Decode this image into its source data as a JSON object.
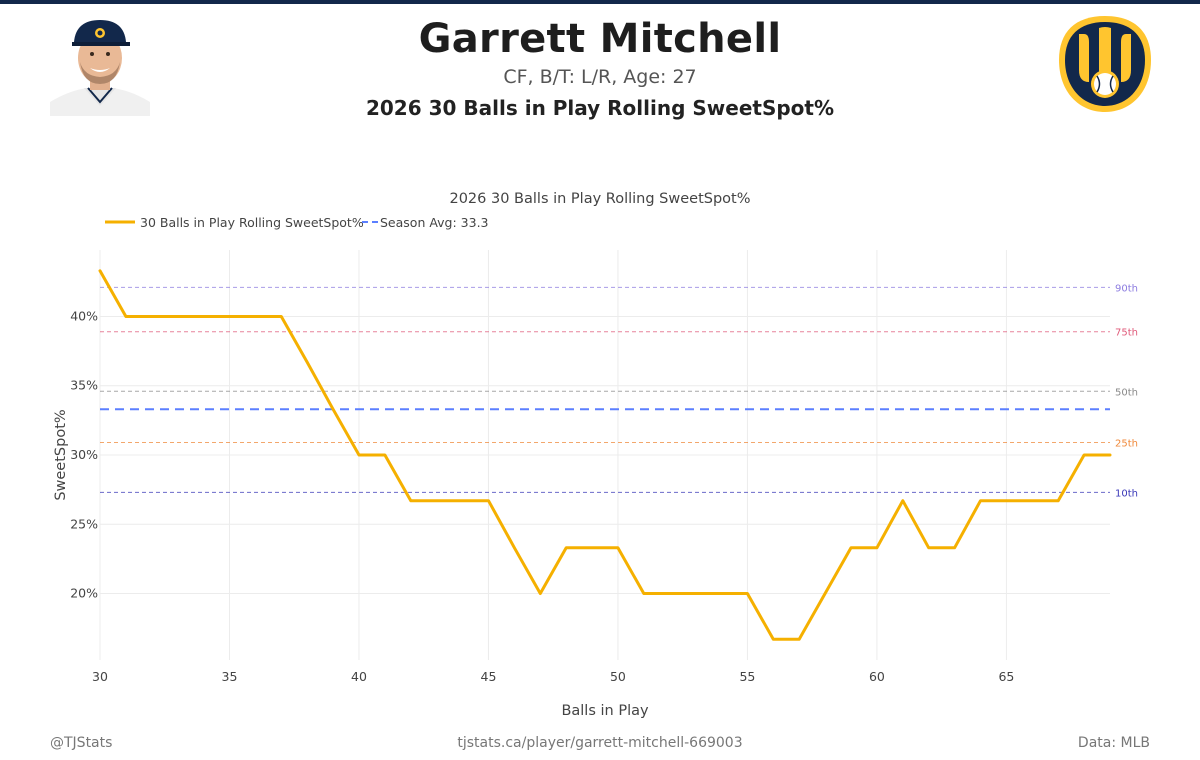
{
  "header": {
    "player_name": "Garrett Mitchell",
    "player_info": "CF, B/T: L/R, Age: 27",
    "report_title": "2026 30 Balls in Play Rolling SweetSpot%"
  },
  "footer": {
    "handle": "@TJStats",
    "url": "tjstats.ca/player/garrett-mitchell-669003",
    "source": "Data: MLB"
  },
  "colors": {
    "line": "#F5B000",
    "season_avg": "#5B7FFF",
    "p90": "#8C7CE0",
    "p75": "#E05A7A",
    "p50": "#8A8A8A",
    "p25": "#F08A3C",
    "p10": "#3A38B8",
    "team_navy": "#12284B",
    "team_gold": "#FFC52F"
  },
  "chart_data": {
    "type": "line",
    "title": "2026 30 Balls in Play Rolling SweetSpot%",
    "xlabel": "Balls in Play",
    "ylabel": "SweetSpot%",
    "xlim": [
      30,
      69
    ],
    "ylim": [
      15.2,
      44.8
    ],
    "grid": true,
    "legend_placement": "top-left",
    "x_ticks": [
      30,
      35,
      40,
      45,
      50,
      55,
      60,
      65
    ],
    "y_ticks": [
      20,
      25,
      30,
      35,
      40
    ],
    "y_tick_labels": [
      "20%",
      "25%",
      "30%",
      "35%",
      "40%"
    ],
    "series": [
      {
        "name": "30 Balls in Play Rolling SweetSpot%",
        "x": [
          30,
          31,
          32,
          33,
          34,
          35,
          36,
          37,
          38,
          39,
          40,
          41,
          42,
          43,
          44,
          45,
          46,
          47,
          48,
          49,
          50,
          51,
          52,
          53,
          54,
          55,
          56,
          57,
          58,
          59,
          60,
          61,
          62,
          63,
          64,
          65,
          66,
          67,
          68,
          69
        ],
        "y": [
          43.3,
          40.0,
          40.0,
          40.0,
          40.0,
          40.0,
          40.0,
          40.0,
          36.7,
          33.3,
          30.0,
          30.0,
          26.7,
          26.7,
          26.7,
          26.7,
          23.3,
          20.0,
          23.3,
          23.3,
          23.3,
          20.0,
          20.0,
          20.0,
          20.0,
          20.0,
          16.7,
          16.7,
          20.0,
          23.3,
          23.3,
          26.7,
          23.3,
          23.3,
          26.7,
          26.7,
          26.7,
          26.7,
          30.0,
          30.0
        ]
      }
    ],
    "season_avg": {
      "label": "Season Avg: 33.3",
      "value": 33.3
    },
    "percentiles": [
      {
        "label": "90th",
        "value": 42.1,
        "color_key": "p90"
      },
      {
        "label": "75th",
        "value": 38.9,
        "color_key": "p75"
      },
      {
        "label": "50th",
        "value": 34.6,
        "color_key": "p50"
      },
      {
        "label": "25th",
        "value": 30.9,
        "color_key": "p25"
      },
      {
        "label": "10th",
        "value": 27.3,
        "color_key": "p10"
      }
    ]
  }
}
